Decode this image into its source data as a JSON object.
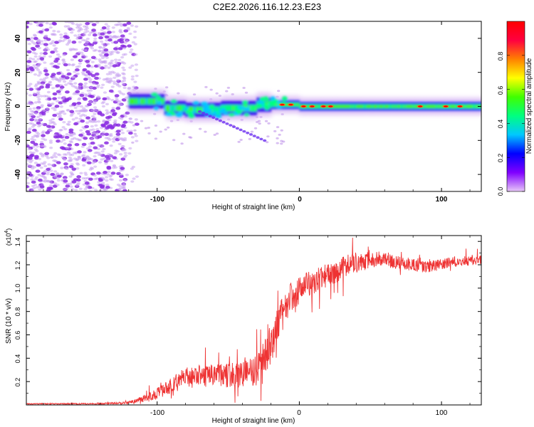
{
  "title": "C2E2.2026.116.12.23.E23",
  "chart_data": [
    {
      "type": "heatmap",
      "xlabel": "Height of straight line (km)",
      "ylabel": "Frequency (Hz)",
      "xlim": [
        -192,
        128
      ],
      "ylim": [
        -50,
        50
      ],
      "xticks": [
        -100,
        0,
        100
      ],
      "yticks": [
        -40,
        -20,
        0,
        20,
        40
      ],
      "colorbar": {
        "label": "Normalized spectral amplitude",
        "range": [
          0,
          1
        ],
        "ticks": [
          "0.0",
          "0.2",
          "0.4",
          "0.6",
          "0.8"
        ],
        "tick_values": [
          0,
          0.2,
          0.4,
          0.6,
          0.8
        ],
        "colors": [
          "#e8c8f8",
          "#8000ff",
          "#0000ff",
          "#00c8ff",
          "#00ff80",
          "#40ff00",
          "#ffff00",
          "#ff8000",
          "#ff0040",
          "#ff0000"
        ]
      },
      "features": {
        "noise_region_x": [
          -192,
          -120
        ],
        "band_start_x": -120,
        "band_center_hz": 0,
        "peak_amplitude": 1.0
      }
    },
    {
      "type": "line",
      "xlabel": "Height of straight line (km)",
      "ylabel": "SNR (10 * v/v)",
      "yscale_label": "(x10",
      "yscale_exp": "4",
      "yscale_close": ")",
      "xlim": [
        -192,
        128
      ],
      "ylim": [
        0,
        1.45
      ],
      "xticks": [
        -100,
        0,
        100
      ],
      "yticks": [
        0.2,
        0.4,
        0.6,
        0.8,
        1.0,
        1.2,
        1.4
      ],
      "ytick_labels": [
        "0.2",
        "0.4",
        "0.6",
        "0.8",
        "1.0",
        "1.2",
        "1.4"
      ],
      "color": "#ee3333",
      "trend": {
        "x": [
          -192,
          -140,
          -120,
          -105,
          -95,
          -80,
          -70,
          -55,
          -40,
          -30,
          -25,
          -20,
          -17,
          -12,
          -6,
          0,
          10,
          25,
          35,
          45,
          55,
          75,
          90,
          110,
          128
        ],
        "y": [
          0.01,
          0.01,
          0.02,
          0.07,
          0.13,
          0.23,
          0.25,
          0.25,
          0.26,
          0.3,
          0.4,
          0.5,
          0.62,
          0.78,
          0.92,
          0.98,
          1.06,
          1.14,
          1.2,
          1.24,
          1.25,
          1.21,
          1.18,
          1.23,
          1.24
        ]
      },
      "amplitude": {
        "x": [
          -192,
          -140,
          -120,
          -100,
          -80,
          -60,
          -40,
          -20,
          -15,
          -10,
          0,
          20,
          40,
          60,
          90,
          128
        ],
        "y": [
          0.004,
          0.006,
          0.01,
          0.05,
          0.1,
          0.1,
          0.11,
          0.16,
          0.16,
          0.14,
          0.12,
          0.1,
          0.1,
          0.06,
          0.05,
          0.04
        ]
      }
    }
  ]
}
